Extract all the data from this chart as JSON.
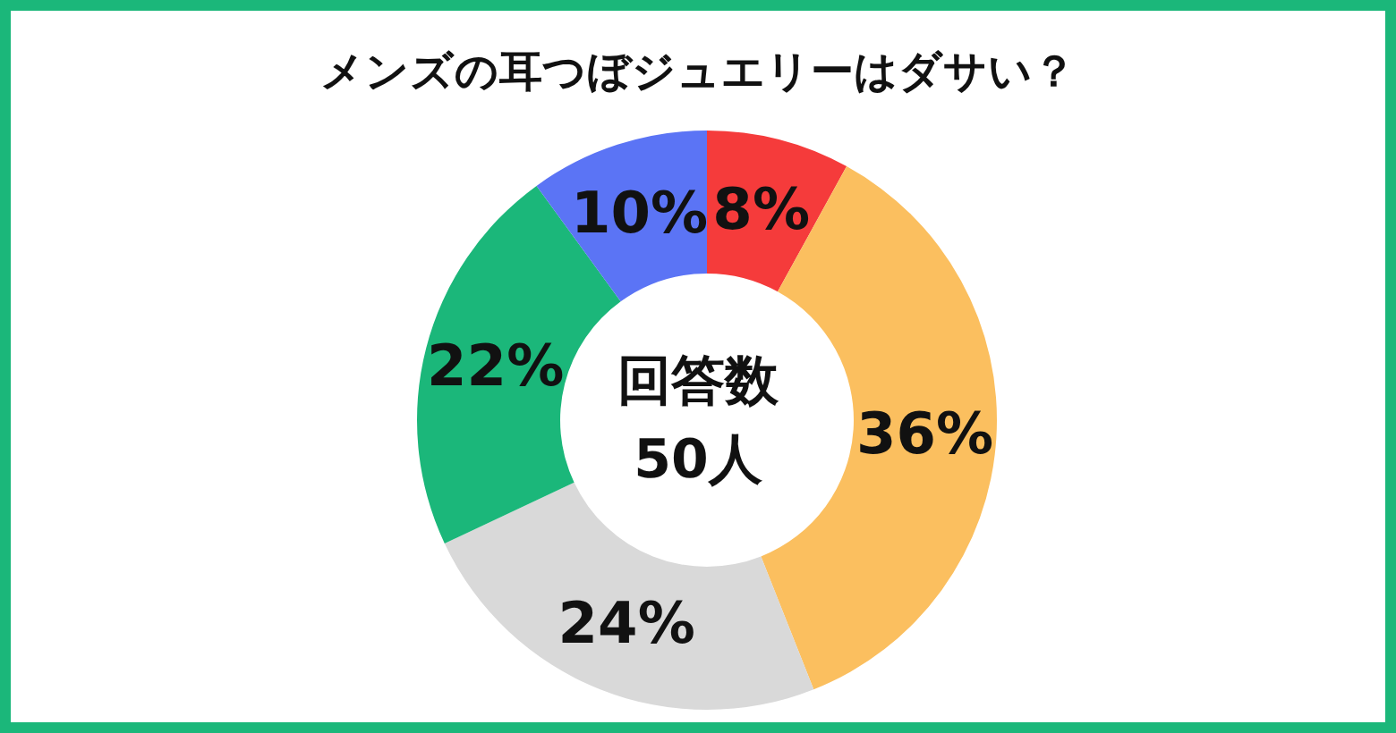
{
  "chart_data": {
    "type": "donut",
    "title": "メンズの耳つぼジュエリーはダサい？",
    "categories": [
      null,
      null,
      null,
      null,
      null
    ],
    "values": [
      8,
      36,
      24,
      22,
      10
    ],
    "value_labels": [
      "8%",
      "36%",
      "24%",
      "22%",
      "10%"
    ],
    "colors": [
      "#f53b3b",
      "#fbbf5f",
      "#d9d9d9",
      "#1bb77a",
      "#5b74f5"
    ],
    "annotations": [
      "回答数",
      "50人"
    ],
    "legend": false
  }
}
